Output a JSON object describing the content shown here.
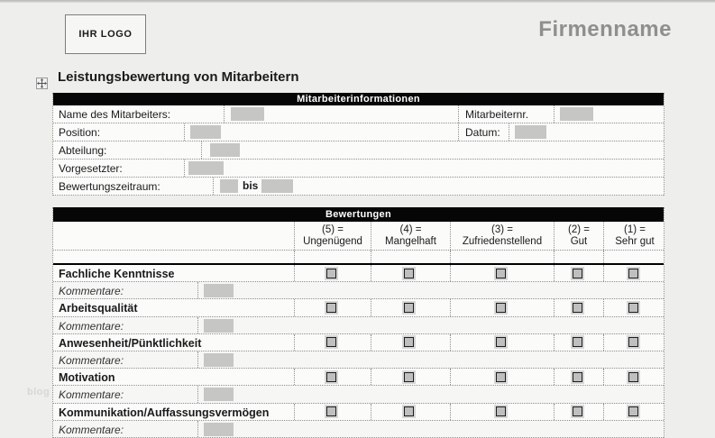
{
  "page": {
    "logo_text": "IHR LOGO",
    "company_name": "Firmenname",
    "title": "Leistungsbewertung von Mitarbeitern",
    "watermark": "blog"
  },
  "employee_info": {
    "header": "Mitarbeiterinformationen",
    "fields": {
      "name_label": "Name des Mitarbeiters:",
      "employee_no_label": "Mitarbeiternr.",
      "position_label": "Position:",
      "date_label": "Datum:",
      "department_label": "Abteilung:",
      "supervisor_label": "Vorgesetzter:",
      "period_label": "Bewertungszeitraum:",
      "period_separator": "bis"
    }
  },
  "ratings": {
    "header": "Bewertungen",
    "scale": [
      {
        "line1": "(5) =",
        "line2": "Ungenügend"
      },
      {
        "line1": "(4) =",
        "line2": "Mangelhaft"
      },
      {
        "line1": "(3) =",
        "line2": "Zufriedenstellend"
      },
      {
        "line1": "(2) =",
        "line2": "Gut"
      },
      {
        "line1": "(1) =",
        "line2": "Sehr gut"
      }
    ],
    "comment_label": "Kommentare:",
    "criteria": [
      "Fachliche Kenntnisse",
      "Arbeitsqualität",
      "Anwesenheit/Pünktlichkeit",
      "Motivation",
      "Kommunikation/Auffassungsvermögen"
    ]
  },
  "colors": {
    "header_bar": "#060606",
    "field_placeholder": "#c6c6c5",
    "company_name_gray": "#8f8f8f",
    "checkbox_fill": "#bfbfbf"
  }
}
